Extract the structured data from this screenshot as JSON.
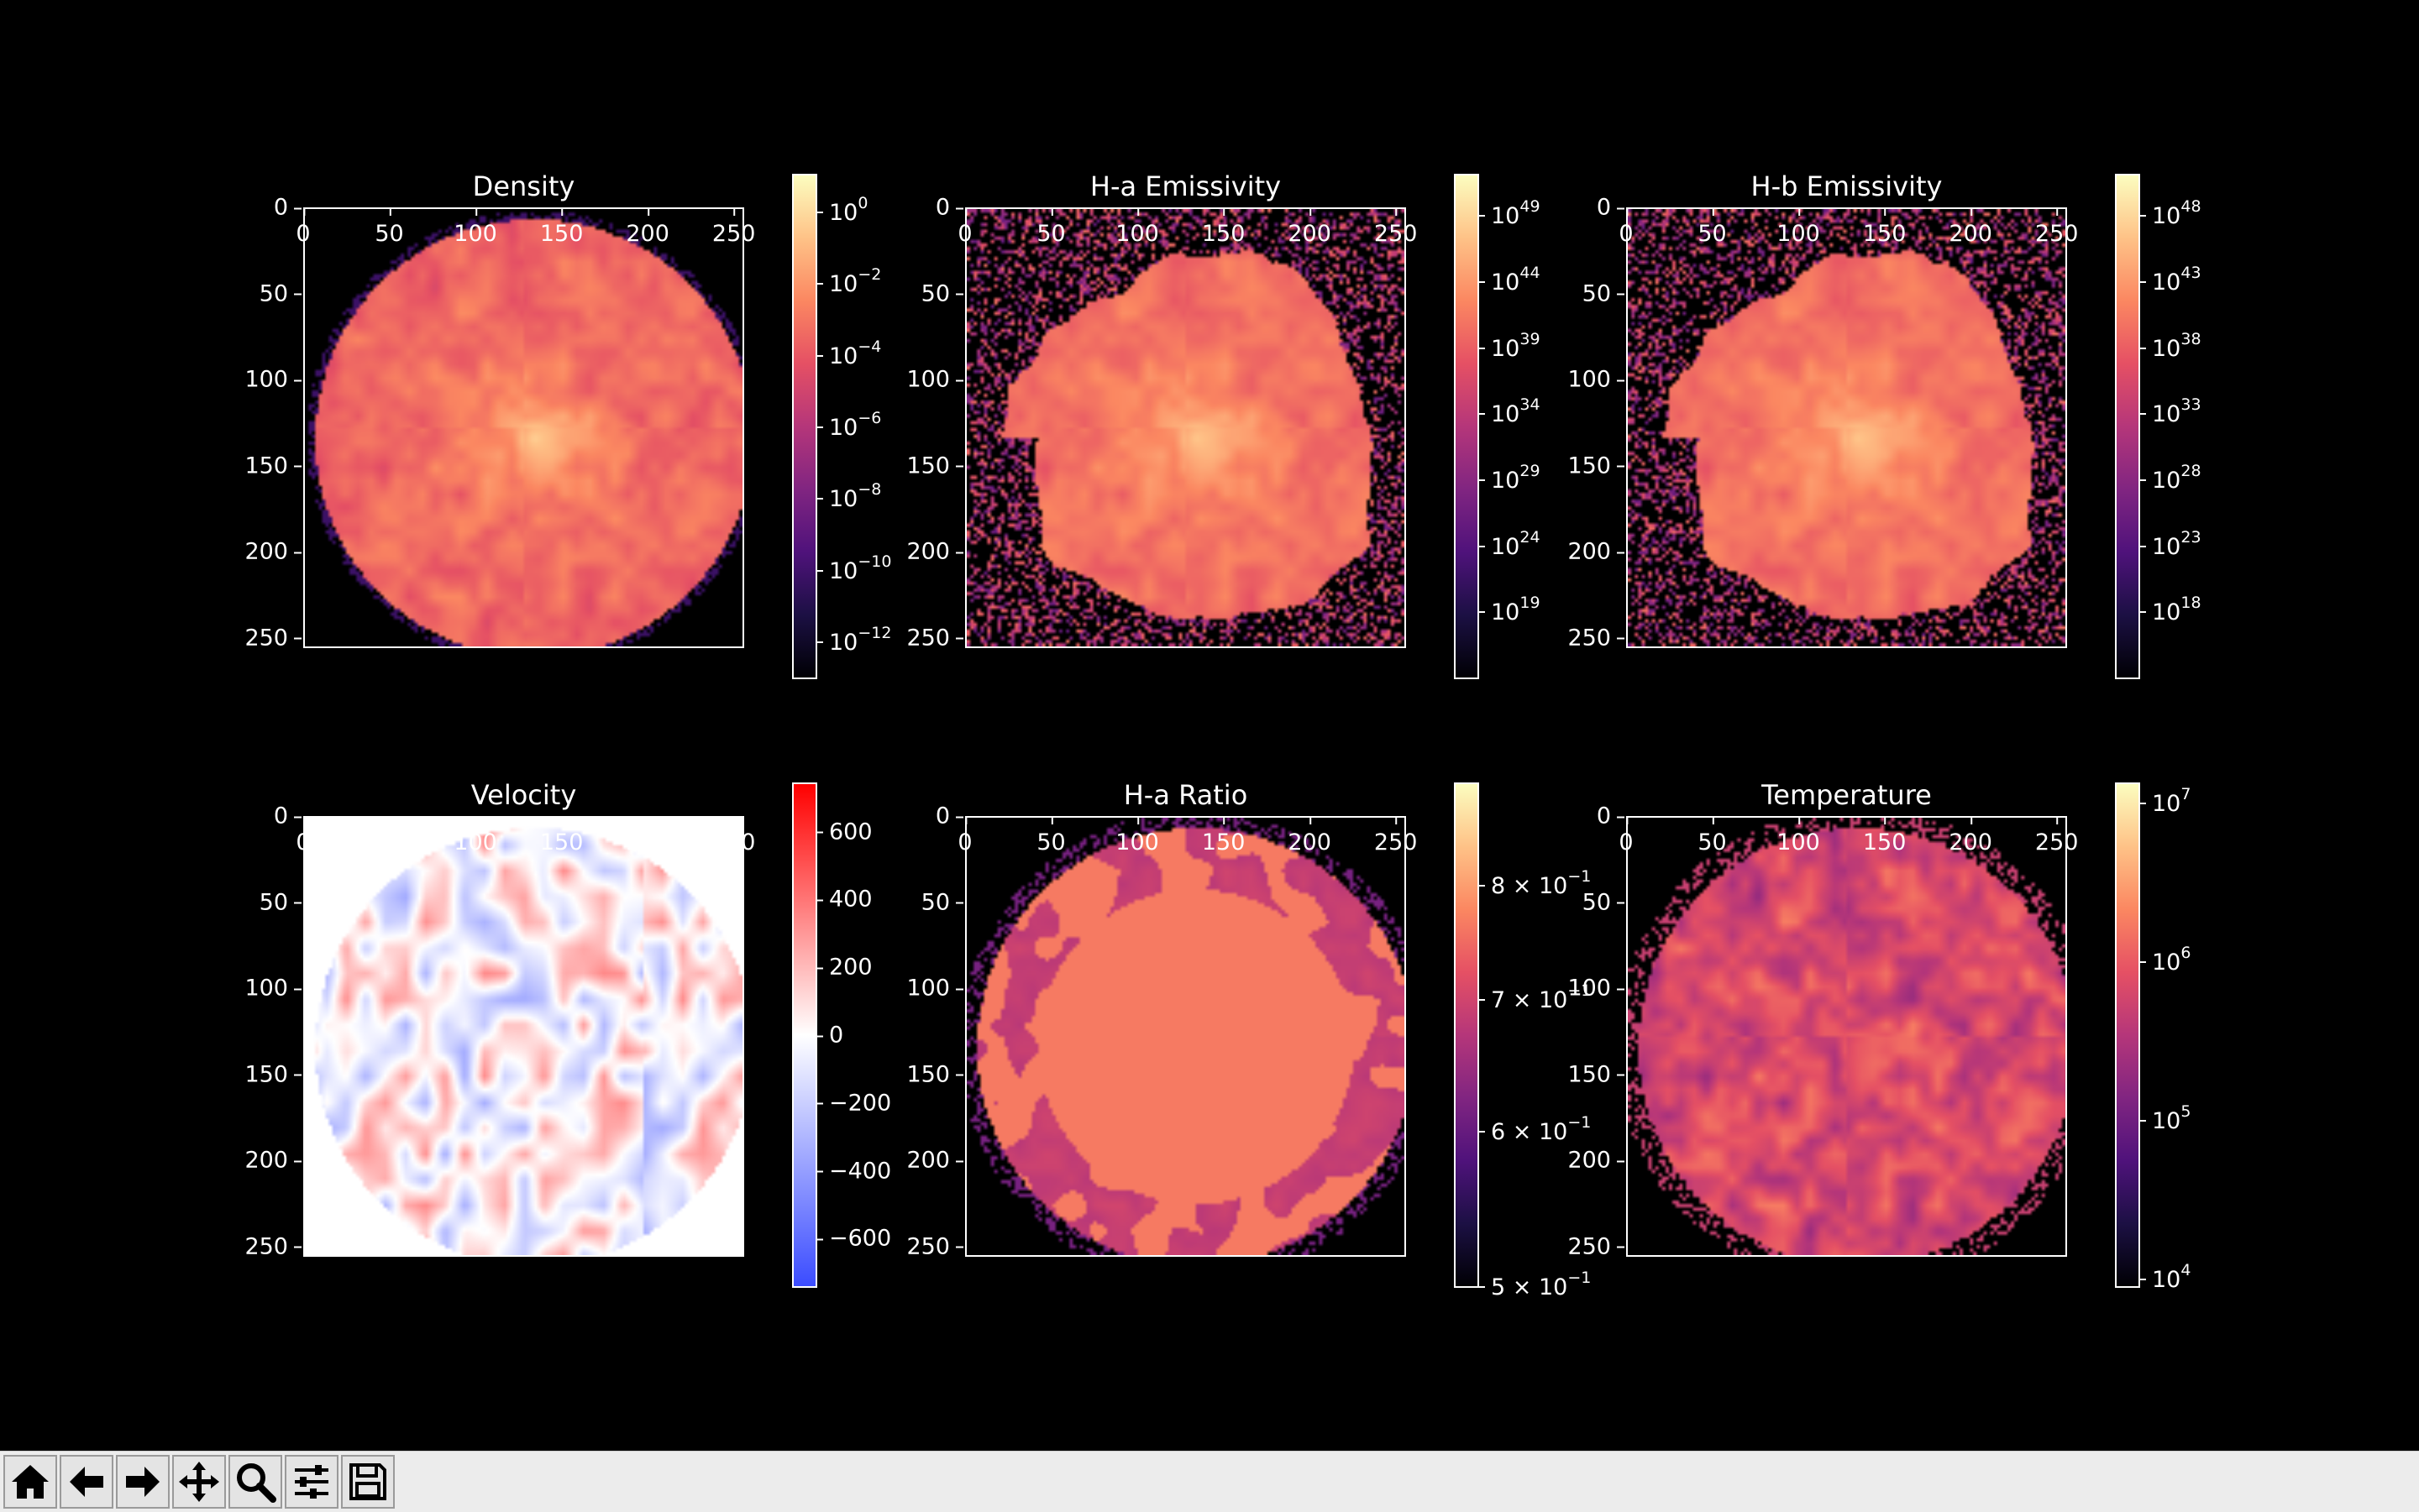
{
  "chart_data": [
    {
      "type": "heatmap",
      "title": "Density",
      "x_ticks": [
        "0",
        "50",
        "100",
        "150",
        "200",
        "250"
      ],
      "y_ticks": [
        "0",
        "50",
        "100",
        "150",
        "200",
        "250"
      ],
      "xlim": [
        0,
        256
      ],
      "ylim": [
        256,
        0
      ],
      "colorbar": {
        "cmap": "magma",
        "scale": "log",
        "range": [
          1e-13,
          10.0
        ],
        "tick_labels": [
          {
            "base": "10",
            "exp": "0"
          },
          {
            "base": "10",
            "exp": "−2"
          },
          {
            "base": "10",
            "exp": "−4"
          },
          {
            "base": "10",
            "exp": "−6"
          },
          {
            "base": "10",
            "exp": "−8"
          },
          {
            "base": "10",
            "exp": "−10"
          },
          {
            "base": "10",
            "exp": "−12"
          }
        ]
      }
    },
    {
      "type": "heatmap",
      "title": "H-a Emissivity",
      "x_ticks": [
        "0",
        "50",
        "100",
        "150",
        "200",
        "250"
      ],
      "y_ticks": [
        "0",
        "50",
        "100",
        "150",
        "200",
        "250"
      ],
      "xlim": [
        0,
        256
      ],
      "ylim": [
        256,
        0
      ],
      "colorbar": {
        "cmap": "magma",
        "scale": "log",
        "range": [
          100000000000000.0,
          1e+52
        ],
        "tick_labels": [
          {
            "base": "10",
            "exp": "49"
          },
          {
            "base": "10",
            "exp": "44"
          },
          {
            "base": "10",
            "exp": "39"
          },
          {
            "base": "10",
            "exp": "34"
          },
          {
            "base": "10",
            "exp": "29"
          },
          {
            "base": "10",
            "exp": "24"
          },
          {
            "base": "10",
            "exp": "19"
          }
        ]
      }
    },
    {
      "type": "heatmap",
      "title": "H-b Emissivity",
      "x_ticks": [
        "0",
        "50",
        "100",
        "150",
        "200",
        "250"
      ],
      "y_ticks": [
        "0",
        "50",
        "100",
        "150",
        "200",
        "250"
      ],
      "xlim": [
        0,
        256
      ],
      "ylim": [
        256,
        0
      ],
      "colorbar": {
        "cmap": "magma",
        "scale": "log",
        "range": [
          10000000000000.0,
          1e+51
        ],
        "tick_labels": [
          {
            "base": "10",
            "exp": "48"
          },
          {
            "base": "10",
            "exp": "43"
          },
          {
            "base": "10",
            "exp": "38"
          },
          {
            "base": "10",
            "exp": "33"
          },
          {
            "base": "10",
            "exp": "28"
          },
          {
            "base": "10",
            "exp": "23"
          },
          {
            "base": "10",
            "exp": "18"
          }
        ]
      }
    },
    {
      "type": "heatmap",
      "title": "Velocity",
      "x_ticks": [
        "0",
        "50",
        "100",
        "150",
        "200",
        "250"
      ],
      "y_ticks": [
        "0",
        "50",
        "100",
        "150",
        "200",
        "250"
      ],
      "xlim": [
        0,
        256
      ],
      "ylim": [
        256,
        0
      ],
      "colorbar": {
        "cmap": "bwr",
        "scale": "linear",
        "range": [
          -740,
          740
        ],
        "tick_labels": [
          {
            "base": "600"
          },
          {
            "base": "400"
          },
          {
            "base": "200"
          },
          {
            "base": "0"
          },
          {
            "base": "−200"
          },
          {
            "base": "−400"
          },
          {
            "base": "−600"
          }
        ]
      }
    },
    {
      "type": "heatmap",
      "title": "H-a Ratio",
      "x_ticks": [
        "0",
        "50",
        "100",
        "150",
        "200",
        "250"
      ],
      "y_ticks": [
        "0",
        "50",
        "100",
        "150",
        "200",
        "250"
      ],
      "xlim": [
        0,
        256
      ],
      "ylim": [
        256,
        0
      ],
      "colorbar": {
        "cmap": "magma",
        "scale": "log",
        "range": [
          0.5,
          0.9
        ],
        "tick_labels": [
          {
            "base": "8 × 10",
            "exp": "−1"
          },
          {
            "base": "7 × 10",
            "exp": "−1"
          },
          {
            "base": "6 × 10",
            "exp": "−1"
          },
          {
            "base": "5 × 10",
            "exp": "−1"
          }
        ]
      }
    },
    {
      "type": "heatmap",
      "title": "Temperature",
      "x_ticks": [
        "0",
        "50",
        "100",
        "150",
        "200",
        "250"
      ],
      "y_ticks": [
        "0",
        "50",
        "100",
        "150",
        "200",
        "250"
      ],
      "xlim": [
        0,
        256
      ],
      "ylim": [
        256,
        0
      ],
      "colorbar": {
        "cmap": "magma",
        "scale": "log",
        "range": [
          9000,
          13000000.0
        ],
        "tick_labels": [
          {
            "base": "10",
            "exp": "7"
          },
          {
            "base": "10",
            "exp": "6"
          },
          {
            "base": "10",
            "exp": "5"
          },
          {
            "base": "10",
            "exp": "4"
          }
        ]
      }
    }
  ],
  "toolbar": {
    "buttons": [
      {
        "icon": "home-icon"
      },
      {
        "icon": "back-arrow-icon"
      },
      {
        "icon": "forward-arrow-icon"
      },
      {
        "icon": "pan-move-icon"
      },
      {
        "icon": "zoom-magnifier-icon"
      },
      {
        "icon": "configure-subplots-icon"
      },
      {
        "icon": "save-floppy-icon"
      }
    ]
  }
}
